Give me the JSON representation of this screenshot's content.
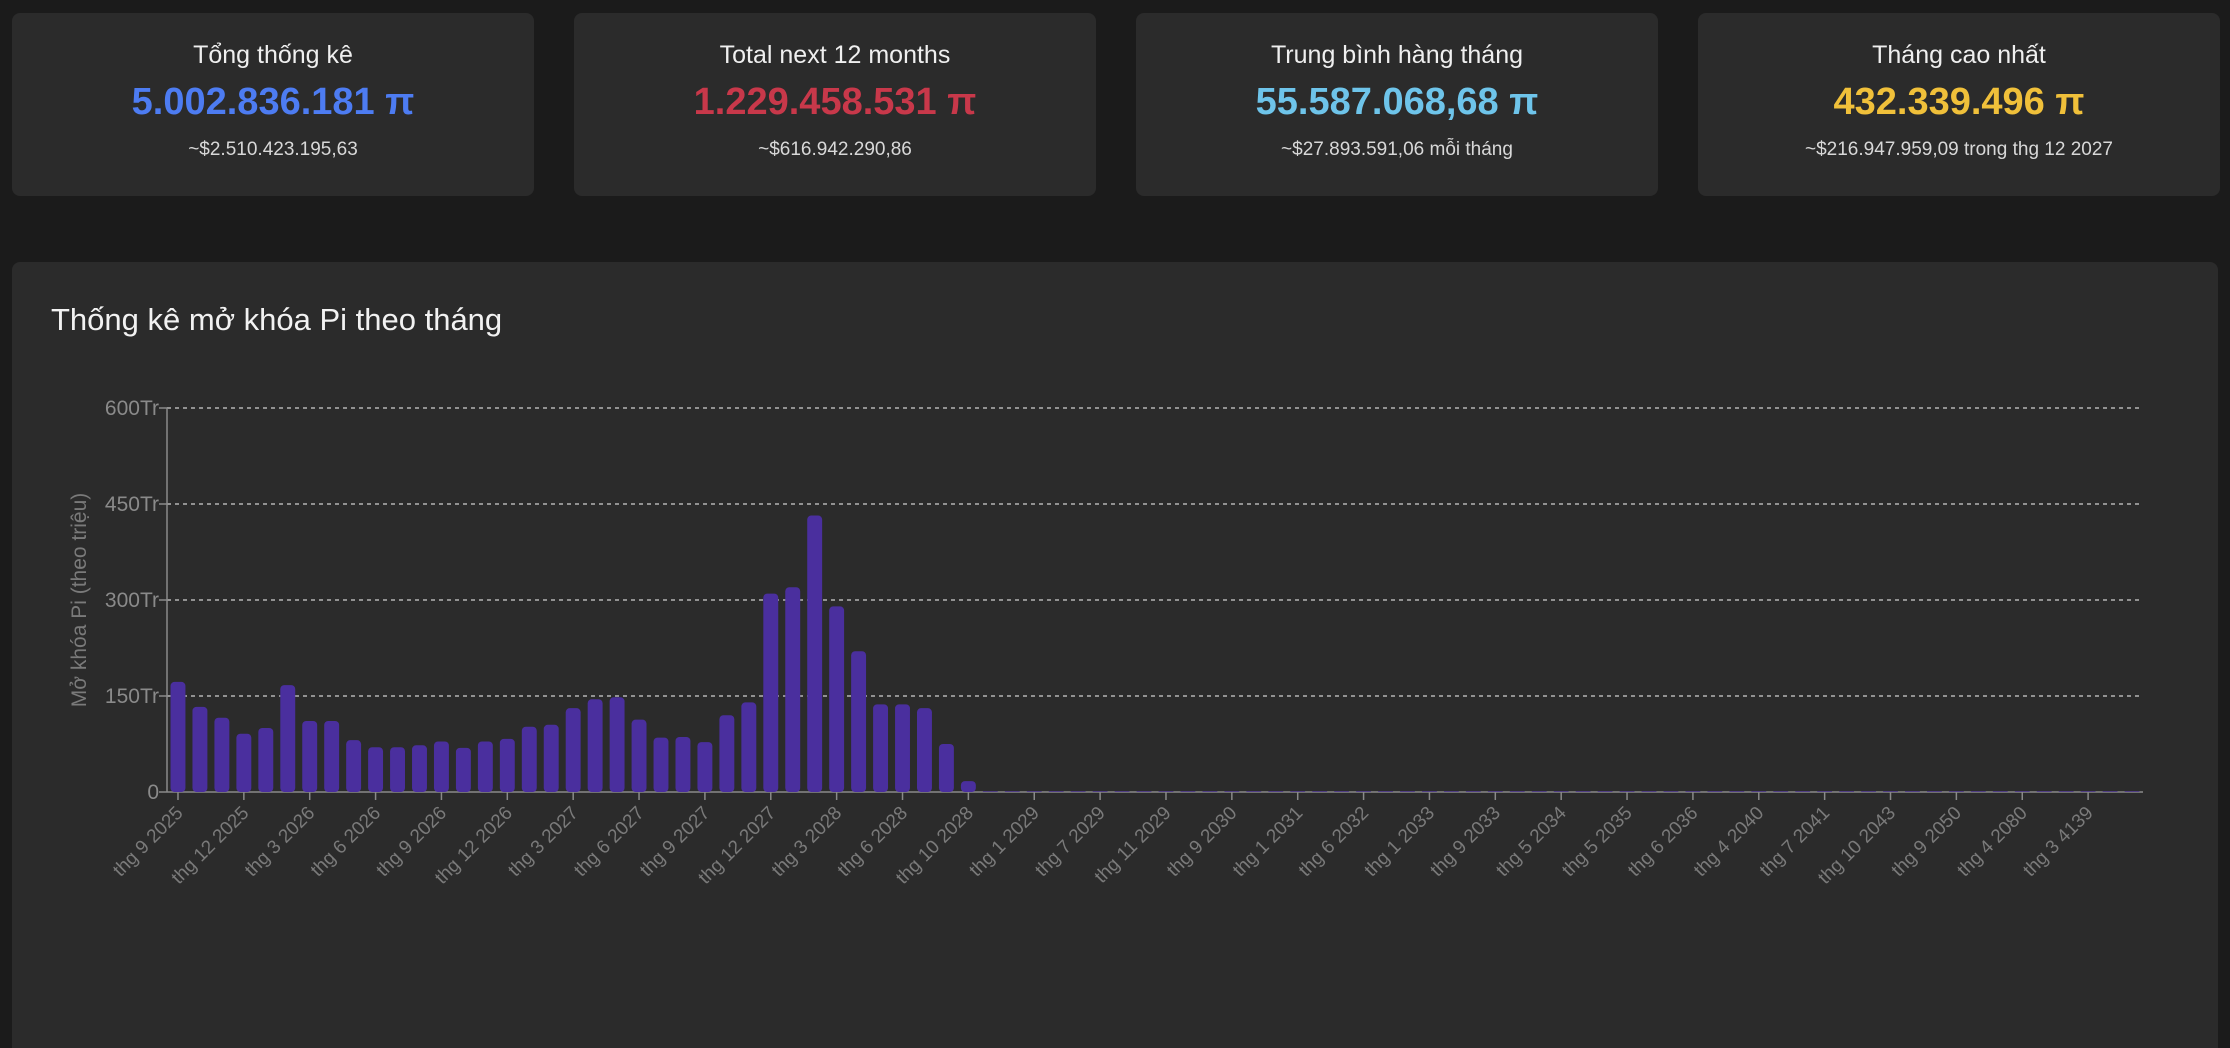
{
  "stats": [
    {
      "title": "Tổng thống kê",
      "value": "5.002.836.181 π",
      "sub": "~$2.510.423.195,63",
      "color": "#4d7cf2"
    },
    {
      "title": "Total next 12 months",
      "value": "1.229.458.531 π",
      "sub": "~$616.942.290,86",
      "color": "#c8384a"
    },
    {
      "title": "Trung bình hàng tháng",
      "value": "55.587.068,68 π",
      "sub": "~$27.893.591,06 mỗi tháng",
      "color": "#6ec4ea"
    },
    {
      "title": "Tháng cao nhất",
      "value": "432.339.496 π",
      "sub": "~$216.947.959,09 trong thg 12 2027",
      "color": "#f0c03a"
    }
  ],
  "chart_title": "Thống kê mở khóa Pi theo tháng",
  "chart_data": {
    "type": "bar",
    "title": "Thống kê mở khóa Pi theo tháng",
    "xlabel": "",
    "ylabel": "Mở khóa Pi (theo triệu)",
    "ylim": [
      0,
      600
    ],
    "yticks": [
      "0",
      "150Tr",
      "300Tr",
      "450Tr",
      "600Tr"
    ],
    "ytick_values": [
      0,
      150,
      300,
      450,
      600
    ],
    "grid": "horizontal dashed",
    "bar_color": "#4a2f9e",
    "axis_tick_labels": [
      "thg 9 2025",
      "thg 12 2025",
      "thg 3 2026",
      "thg 6 2026",
      "thg 9 2026",
      "thg 12 2026",
      "thg 3 2027",
      "thg 6 2027",
      "thg 9 2027",
      "thg 12 2027",
      "thg 3 2028",
      "thg 6 2028",
      "thg 10 2028",
      "thg 1 2029",
      "thg 7 2029",
      "thg 11 2029",
      "thg 9 2030",
      "thg 1 2031",
      "thg 6 2032",
      "thg 1 2033",
      "thg 9 2033",
      "thg 5 2034",
      "thg 5 2035",
      "thg 6 2036",
      "thg 4 2040",
      "thg 7 2041",
      "thg 10 2043",
      "thg 9 2050",
      "thg 4 2080",
      "thg 3 4139"
    ],
    "tick_every": 3,
    "series": [
      {
        "values": [
          172,
          133,
          116,
          91,
          100,
          167,
          111,
          111,
          81,
          70,
          70,
          73,
          79,
          69,
          79,
          83,
          102,
          105,
          131,
          145,
          148,
          113,
          85,
          86,
          78,
          120,
          140,
          310,
          320,
          432,
          290,
          220,
          137,
          137,
          131,
          75,
          17,
          0.8,
          0.7,
          0.6,
          0.6,
          0.5,
          0.5,
          0.5,
          0.4,
          0.4,
          0.4,
          0.3,
          0.3,
          0.3,
          0.3,
          0.3,
          0.2,
          0.2,
          0.2,
          0.2,
          0.2,
          0.2,
          0.2,
          0.2,
          0.1,
          0.1,
          0.1,
          0.1,
          0.1,
          0.1,
          0.1,
          0.1,
          0.1,
          0.1,
          0.1,
          0.1,
          0.1,
          0.1,
          0.1,
          0.1,
          0.1,
          0.1,
          0.1,
          0.1,
          0.1,
          0.1,
          0.1,
          0.1,
          0.1,
          0.1,
          0.1,
          0.1,
          0.1,
          0.1
        ]
      }
    ]
  }
}
